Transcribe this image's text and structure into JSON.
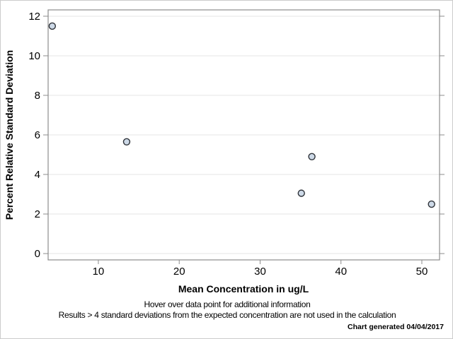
{
  "chart_data": {
    "type": "scatter",
    "title": "",
    "xlabel": "Mean Concentration in ug/L",
    "ylabel": "Percent Relative Standard Deviation",
    "x_ticks": [
      10,
      20,
      30,
      40,
      50
    ],
    "y_ticks": [
      0,
      2,
      4,
      6,
      8,
      10,
      12
    ],
    "xlim": [
      3.79,
      52.19
    ],
    "ylim": [
      -0.32,
      12.32
    ],
    "grid": "horizontal-only",
    "legend": "none",
    "points": [
      {
        "x": 4.3,
        "y": 11.5
      },
      {
        "x": 13.5,
        "y": 5.65
      },
      {
        "x": 35.1,
        "y": 3.05
      },
      {
        "x": 36.4,
        "y": 4.9
      },
      {
        "x": 51.2,
        "y": 2.5
      }
    ],
    "marker": {
      "shape": "circle",
      "radius": 4.5,
      "fill": "#cdd9e7",
      "stroke": "#2e3238"
    }
  },
  "footer": {
    "note1": "Hover over data point for additional information",
    "note2": "Results > 4 standard deviations from the expected concentration are not used in the calculation",
    "generated": "Chart generated 04/04/2017"
  },
  "colors": {
    "axis": "#8c8c8c",
    "gridline": "#e4e4e4",
    "tick": "#8c8c8c",
    "text": "#000000",
    "frame_border": "#cccccc",
    "background": "#ffffff"
  }
}
